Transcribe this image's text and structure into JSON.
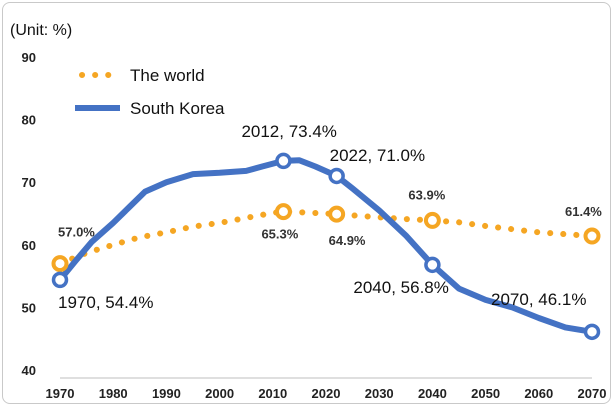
{
  "chart_data": {
    "type": "line",
    "unit_label": "(Unit: %)",
    "title": "",
    "xlabel": "",
    "ylabel": "",
    "x_ticks": [
      "1970",
      "1980",
      "1990",
      "2000",
      "2010",
      "2020",
      "2030",
      "2040",
      "2050",
      "2060",
      "2070"
    ],
    "y_ticks": [
      "40",
      "50",
      "60",
      "70",
      "80",
      "90"
    ],
    "xlim": [
      1970,
      2070
    ],
    "ylim": [
      40,
      90
    ],
    "grid": false,
    "legend_position": "top-left",
    "series": [
      {
        "name": "The world",
        "color": "#F5A623",
        "style": "dotted",
        "x": [
          1970,
          1975,
          1980,
          1985,
          1990,
          1995,
          2000,
          2005,
          2010,
          2012,
          2015,
          2020,
          2022,
          2025,
          2030,
          2035,
          2040,
          2045,
          2050,
          2055,
          2060,
          2065,
          2070
        ],
        "y": [
          57.0,
          58.7,
          60.0,
          61.2,
          62.0,
          62.9,
          63.5,
          64.3,
          65.1,
          65.3,
          65.2,
          65.0,
          64.9,
          64.7,
          64.4,
          64.1,
          63.9,
          63.6,
          63.0,
          62.5,
          62.0,
          61.7,
          61.4
        ],
        "markers": [
          {
            "x": 1970,
            "y": 57.0,
            "label": "57.0%"
          },
          {
            "x": 2012,
            "y": 65.3,
            "label": "65.3%"
          },
          {
            "x": 2022,
            "y": 64.9,
            "label": "64.9%"
          },
          {
            "x": 2040,
            "y": 63.9,
            "label": "63.9%"
          },
          {
            "x": 2070,
            "y": 61.4,
            "label": "61.4%"
          }
        ]
      },
      {
        "name": "South Korea",
        "color": "#4472C4",
        "style": "solid",
        "x": [
          1970,
          1973,
          1976,
          1980,
          1983,
          1986,
          1990,
          1995,
          2000,
          2005,
          2008,
          2012,
          2015,
          2018,
          2022,
          2025,
          2030,
          2035,
          2040,
          2045,
          2050,
          2055,
          2060,
          2065,
          2070
        ],
        "y": [
          54.4,
          57.5,
          60.5,
          63.5,
          66.0,
          68.5,
          70.0,
          71.3,
          71.5,
          71.8,
          72.5,
          73.4,
          73.5,
          72.5,
          71.0,
          69.0,
          65.5,
          61.5,
          56.8,
          53.0,
          51.2,
          50.0,
          48.3,
          46.8,
          46.1
        ],
        "markers": [
          {
            "x": 1970,
            "y": 54.4,
            "label": "1970, 54.4%"
          },
          {
            "x": 2012,
            "y": 73.4,
            "label": "2012, 73.4%"
          },
          {
            "x": 2022,
            "y": 71.0,
            "label": "2022, 71.0%"
          },
          {
            "x": 2040,
            "y": 56.8,
            "label": "2040, 56.8%"
          },
          {
            "x": 2070,
            "y": 46.1,
            "label": "2070, 46.1%"
          }
        ]
      }
    ]
  }
}
